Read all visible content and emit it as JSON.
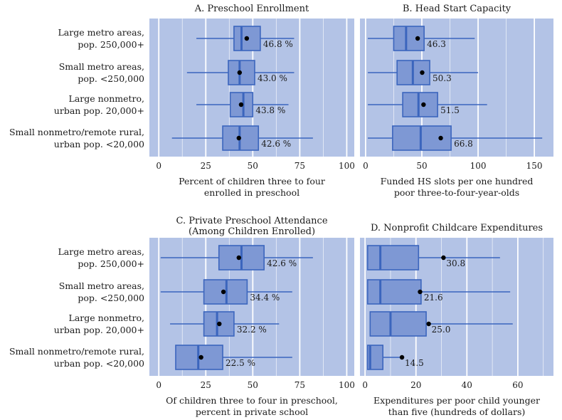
{
  "chart_data": [
    {
      "type": "boxplot",
      "panel": "A",
      "title": "A. Preschool Enrollment",
      "xlabel": [
        "Percent of children three to four",
        "enrolled in preschool"
      ],
      "xlim": [
        -5,
        104
      ],
      "ticks": [
        0,
        25,
        50,
        75,
        100
      ],
      "minor_ticks": [
        12.5,
        37.5,
        62.5,
        87.5
      ],
      "categories": [
        [
          "Large metro areas,",
          "pop. 250,000+"
        ],
        [
          "Small metro areas,",
          "pop. <250,000"
        ],
        [
          "Large nonmetro,",
          "urban pop. 20,000+"
        ],
        [
          "Small nonmetro/remote rural,",
          "urban pop. <20,000"
        ]
      ],
      "boxes": [
        {
          "whisker_low": 20,
          "q1": 40,
          "median": 44,
          "q3": 54,
          "whisker_high": 72,
          "mean": 46.8,
          "mean_label": "46.8 %"
        },
        {
          "whisker_low": 15,
          "q1": 37,
          "median": 43,
          "q3": 51,
          "whisker_high": 72,
          "mean": 43.0,
          "mean_label": "43.0 %"
        },
        {
          "whisker_low": 20,
          "q1": 38,
          "median": 45,
          "q3": 50,
          "whisker_high": 69,
          "mean": 43.8,
          "mean_label": "43.8 %"
        },
        {
          "whisker_low": 7,
          "q1": 34,
          "median": 43,
          "q3": 53,
          "whisker_high": 82,
          "mean": 42.6,
          "mean_label": "42.6 %"
        }
      ]
    },
    {
      "type": "boxplot",
      "panel": "B",
      "title": "B. Head Start Capacity",
      "xlabel": [
        "Funded HS slots per one hundred",
        "poor three-to-four-year-olds"
      ],
      "xlim": [
        -5,
        167
      ],
      "ticks": [
        0,
        50,
        100,
        150
      ],
      "minor_ticks": [
        25,
        75,
        125
      ],
      "categories": [
        [
          "Large metro areas,",
          "pop. 250,000+"
        ],
        [
          "Small metro areas,",
          "pop. <250,000"
        ],
        [
          "Large nonmetro,",
          "urban pop. 20,000+"
        ],
        [
          "Small nonmetro/remote rural,",
          "urban pop. <20,000"
        ]
      ],
      "boxes": [
        {
          "whisker_low": 2,
          "q1": 25,
          "median": 36,
          "q3": 52,
          "whisker_high": 97,
          "mean": 46.3,
          "mean_label": "46.3"
        },
        {
          "whisker_low": 2,
          "q1": 28,
          "median": 42,
          "q3": 57,
          "whisker_high": 100,
          "mean": 50.3,
          "mean_label": "50.3"
        },
        {
          "whisker_low": 2,
          "q1": 33,
          "median": 47,
          "q3": 64,
          "whisker_high": 108,
          "mean": 51.5,
          "mean_label": "51.5"
        },
        {
          "whisker_low": 2,
          "q1": 24,
          "median": 49,
          "q3": 76,
          "whisker_high": 157,
          "mean": 66.8,
          "mean_label": "66.8"
        }
      ]
    },
    {
      "type": "boxplot",
      "panel": "C",
      "title": [
        "C. Private Preschool Attendance",
        "(Among Children Enrolled)"
      ],
      "xlabel": [
        "Of children three to four in preschool,",
        "percent in private school"
      ],
      "xlim": [
        -5,
        104
      ],
      "ticks": [
        0,
        25,
        50,
        75,
        100
      ],
      "minor_ticks": [
        12.5,
        37.5,
        62.5,
        87.5
      ],
      "categories": [
        [
          "Large metro areas,",
          "pop. 250,000+"
        ],
        [
          "Small metro areas,",
          "pop. <250,000"
        ],
        [
          "Large nonmetro,",
          "urban pop. 20,000+"
        ],
        [
          "Small nonmetro/remote rural,",
          "urban pop. <20,000"
        ]
      ],
      "boxes": [
        {
          "whisker_low": 1,
          "q1": 32,
          "median": 44,
          "q3": 56,
          "whisker_high": 82,
          "mean": 42.6,
          "mean_label": "42.6 %"
        },
        {
          "whisker_low": 1,
          "q1": 24,
          "median": 36,
          "q3": 47,
          "whisker_high": 71,
          "mean": 34.4,
          "mean_label": "34.4 %"
        },
        {
          "whisker_low": 6,
          "q1": 24,
          "median": 31,
          "q3": 40,
          "whisker_high": 64,
          "mean": 32.2,
          "mean_label": "32.2 %"
        },
        {
          "whisker_low": 9,
          "q1": 9,
          "median": 21,
          "q3": 34,
          "whisker_high": 71,
          "mean": 22.5,
          "mean_label": "22.5 %"
        }
      ]
    },
    {
      "type": "boxplot",
      "panel": "D",
      "title": "D. Nonprofit Childcare Expenditures",
      "xlabel": [
        "Expenditures per poor child younger",
        "than five (hundreds of dollars)"
      ],
      "xlim": [
        -2,
        74
      ],
      "ticks": [
        0,
        20,
        40,
        60
      ],
      "minor_ticks": [
        10,
        30,
        50,
        70
      ],
      "categories": [
        [
          "Large metro areas,",
          "pop. 250,000+"
        ],
        [
          "Small metro areas,",
          "pop. <250,000"
        ],
        [
          "Large nonmetro,",
          "urban pop. 20,000+"
        ],
        [
          "Small nonmetro/remote rural,",
          "urban pop. <20,000"
        ]
      ],
      "boxes": [
        {
          "whisker_low": 1,
          "q1": 1,
          "median": 6,
          "q3": 21,
          "whisker_high": 53,
          "mean": 30.8,
          "mean_label": "30.8"
        },
        {
          "whisker_low": 1,
          "q1": 1,
          "median": 6,
          "q3": 22,
          "whisker_high": 57,
          "mean": 21.6,
          "mean_label": "21.6"
        },
        {
          "whisker_low": 2,
          "q1": 2,
          "median": 10,
          "q3": 24,
          "whisker_high": 58,
          "mean": 25.0,
          "mean_label": "25.0"
        },
        {
          "whisker_low": 1,
          "q1": 1,
          "median": 2,
          "q3": 7,
          "whisker_high": 14.5,
          "mean": 14.5,
          "mean_label": "14.5"
        }
      ]
    }
  ]
}
